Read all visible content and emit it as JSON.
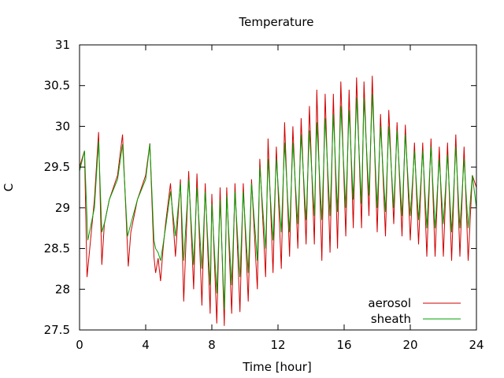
{
  "chart_data": {
    "type": "line",
    "title": "Temperature",
    "xlabel": "Time [hour]",
    "ylabel": "C",
    "xlim": [
      0,
      24
    ],
    "ylim": [
      27.5,
      31
    ],
    "xticks": [
      0,
      4,
      8,
      12,
      16,
      20,
      24
    ],
    "yticks": [
      27.5,
      28,
      28.5,
      29,
      29.5,
      30,
      30.5,
      31
    ],
    "ytick_labels": [
      "27.5",
      "28",
      "28.5",
      "29",
      "29.5",
      "30",
      "30.5",
      "31"
    ],
    "grid": false,
    "legend_position": "bottom-right",
    "series": [
      {
        "name": "aerosol",
        "color": "#d00000",
        "x": [
          0,
          0.3,
          0.45,
          0.9,
          1.15,
          1.35,
          1.5,
          1.8,
          2.3,
          2.6,
          2.95,
          3.1,
          3.5,
          4.0,
          4.25,
          4.5,
          4.6,
          4.75,
          4.9,
          5.05,
          5.2,
          5.5,
          5.8,
          6.1,
          6.3,
          6.6,
          6.9,
          7.1,
          7.4,
          7.6,
          7.9,
          8.0,
          8.3,
          8.5,
          8.75,
          8.9,
          9.2,
          9.4,
          9.7,
          9.9,
          10.2,
          10.4,
          10.75,
          10.9,
          11.25,
          11.4,
          11.7,
          11.9,
          12.2,
          12.4,
          12.7,
          12.9,
          13.2,
          13.4,
          13.7,
          13.9,
          14.2,
          14.35,
          14.65,
          14.85,
          15.15,
          15.35,
          15.6,
          15.8,
          16.1,
          16.3,
          16.55,
          16.75,
          17.05,
          17.2,
          17.5,
          17.7,
          18.0,
          18.2,
          18.5,
          18.7,
          19.0,
          19.2,
          19.5,
          19.7,
          20.0,
          20.25,
          20.5,
          20.75,
          21.0,
          21.25,
          21.5,
          21.75,
          22.0,
          22.25,
          22.5,
          22.75,
          23.0,
          23.25,
          23.5,
          23.75,
          24.0
        ],
        "values": [
          29.5,
          29.7,
          28.15,
          29.1,
          29.93,
          28.3,
          28.8,
          29.1,
          29.4,
          29.9,
          28.28,
          28.7,
          29.1,
          29.4,
          29.79,
          28.4,
          28.2,
          28.38,
          28.1,
          28.5,
          28.8,
          29.3,
          28.4,
          29.35,
          27.85,
          29.45,
          28.0,
          29.42,
          27.8,
          29.3,
          27.7,
          29.17,
          27.58,
          29.25,
          27.55,
          29.25,
          27.7,
          29.3,
          27.72,
          29.3,
          27.85,
          29.35,
          28.0,
          29.6,
          28.15,
          29.85,
          28.2,
          29.75,
          28.25,
          30.05,
          28.4,
          30.0,
          28.5,
          30.1,
          28.55,
          30.25,
          28.55,
          30.45,
          28.35,
          30.4,
          28.45,
          30.4,
          28.5,
          30.55,
          28.65,
          30.45,
          28.75,
          30.6,
          28.75,
          30.55,
          28.9,
          30.62,
          28.7,
          30.15,
          28.65,
          30.2,
          28.8,
          30.05,
          28.65,
          30.02,
          28.6,
          29.8,
          28.55,
          29.8,
          28.4,
          29.85,
          28.4,
          29.75,
          28.4,
          29.8,
          28.35,
          29.9,
          28.4,
          29.75,
          28.35,
          29.4,
          29.25
        ]
      },
      {
        "name": "sheath",
        "color": "#00a000",
        "x": [
          0,
          0.3,
          0.5,
          0.9,
          1.15,
          1.35,
          1.55,
          1.8,
          2.3,
          2.6,
          2.9,
          3.1,
          3.5,
          4.0,
          4.25,
          4.5,
          4.6,
          4.75,
          4.9,
          5.05,
          5.2,
          5.5,
          5.8,
          6.1,
          6.3,
          6.6,
          6.9,
          7.1,
          7.4,
          7.6,
          7.9,
          8.0,
          8.3,
          8.5,
          8.75,
          8.9,
          9.2,
          9.4,
          9.7,
          9.9,
          10.2,
          10.4,
          10.75,
          10.9,
          11.25,
          11.4,
          11.7,
          11.9,
          12.2,
          12.4,
          12.7,
          12.9,
          13.2,
          13.4,
          13.7,
          13.9,
          14.2,
          14.35,
          14.65,
          14.85,
          15.15,
          15.35,
          15.6,
          15.8,
          16.1,
          16.3,
          16.55,
          16.75,
          17.05,
          17.2,
          17.5,
          17.7,
          18.0,
          18.2,
          18.5,
          18.7,
          19.0,
          19.2,
          19.5,
          19.7,
          20.0,
          20.25,
          20.5,
          20.75,
          21.0,
          21.25,
          21.5,
          21.75,
          22.0,
          22.25,
          22.5,
          22.75,
          23.0,
          23.25,
          23.5,
          23.75,
          24.0
        ],
        "values": [
          29.45,
          29.7,
          28.6,
          29.0,
          29.82,
          28.7,
          28.85,
          29.1,
          29.35,
          29.78,
          28.65,
          28.8,
          29.1,
          29.35,
          29.78,
          28.6,
          28.5,
          28.45,
          28.35,
          28.55,
          28.75,
          29.2,
          28.65,
          29.3,
          28.35,
          29.35,
          28.3,
          29.25,
          28.25,
          29.2,
          28.05,
          29.05,
          27.95,
          29.1,
          27.75,
          29.15,
          28.05,
          29.2,
          28.15,
          29.2,
          28.2,
          29.3,
          28.35,
          29.5,
          28.5,
          29.6,
          28.6,
          29.6,
          28.7,
          29.8,
          28.7,
          29.8,
          28.8,
          29.9,
          28.85,
          29.95,
          28.9,
          30.05,
          28.85,
          30.1,
          28.9,
          30.15,
          28.95,
          30.25,
          29.0,
          30.2,
          29.1,
          30.35,
          29.05,
          30.35,
          29.15,
          30.4,
          29.0,
          30.0,
          28.95,
          30.0,
          29.0,
          29.95,
          28.9,
          29.9,
          28.9,
          29.7,
          28.85,
          29.7,
          28.75,
          29.75,
          28.75,
          29.6,
          28.8,
          29.65,
          28.7,
          29.75,
          28.75,
          29.6,
          28.75,
          29.4,
          29.0
        ]
      }
    ]
  }
}
